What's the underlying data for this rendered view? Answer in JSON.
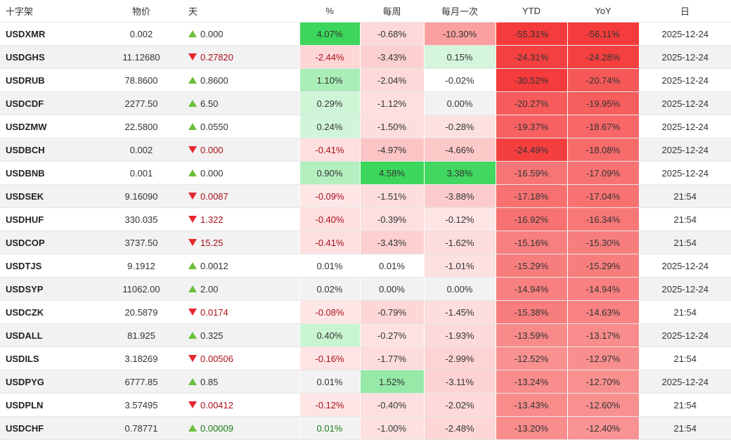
{
  "headers": {
    "symbol": "十字架",
    "price": "物价",
    "day": "天",
    "pct": "%",
    "weekly": "每周",
    "monthly": "每月一次",
    "ytd": "YTD",
    "yoy": "YoY",
    "date": "日"
  },
  "colors": {
    "up_triangle": "#6cbf3c",
    "down_triangle": "#e5262c",
    "positive_strong": "#3cd65c",
    "negative_strong": "#f53b3b"
  },
  "rows": [
    {
      "symbol": "USDXMR",
      "price": "0.002",
      "dir": "up",
      "day": "0.000",
      "pct": "4.07%",
      "weekly": "-0.68%",
      "monthly": "-10.30%",
      "ytd": "-55.31%",
      "yoy": "-56.11%",
      "date": "2025-12-24"
    },
    {
      "symbol": "USDGHS",
      "price": "11.12680",
      "dir": "down",
      "day": "0.27820",
      "pct": "-2.44%",
      "weekly": "-3.43%",
      "monthly": "0.15%",
      "ytd": "-24.31%",
      "yoy": "-24.28%",
      "date": "2025-12-24"
    },
    {
      "symbol": "USDRUB",
      "price": "78.8600",
      "dir": "up",
      "day": "0.8600",
      "pct": "1.10%",
      "weekly": "-2.04%",
      "monthly": "-0.02%",
      "ytd": "-30.52%",
      "yoy": "-20.74%",
      "date": "2025-12-24"
    },
    {
      "symbol": "USDCDF",
      "price": "2277.50",
      "dir": "up",
      "day": "6.50",
      "pct": "0.29%",
      "weekly": "-1.12%",
      "monthly": "0.00%",
      "ytd": "-20.27%",
      "yoy": "-19.95%",
      "date": "2025-12-24"
    },
    {
      "symbol": "USDZMW",
      "price": "22.5800",
      "dir": "up",
      "day": "0.0550",
      "pct": "0.24%",
      "weekly": "-1.50%",
      "monthly": "-0.28%",
      "ytd": "-19.37%",
      "yoy": "-18.67%",
      "date": "2025-12-24"
    },
    {
      "symbol": "USDBCH",
      "price": "0.002",
      "dir": "down",
      "day": "0.000",
      "pct": "-0.41%",
      "weekly": "-4.97%",
      "monthly": "-4.66%",
      "ytd": "-24.49%",
      "yoy": "-18.08%",
      "date": "2025-12-24"
    },
    {
      "symbol": "USDBNB",
      "price": "0.001",
      "dir": "up",
      "day": "0.000",
      "pct": "0.90%",
      "weekly": "4.58%",
      "monthly": "3.38%",
      "ytd": "-16.59%",
      "yoy": "-17.09%",
      "date": "2025-12-24"
    },
    {
      "symbol": "USDSEK",
      "price": "9.16090",
      "dir": "down",
      "day": "0.0087",
      "pct": "-0.09%",
      "weekly": "-1.51%",
      "monthly": "-3.88%",
      "ytd": "-17.18%",
      "yoy": "-17.04%",
      "date": "21:54"
    },
    {
      "symbol": "USDHUF",
      "price": "330.035",
      "dir": "down",
      "day": "1.322",
      "pct": "-0.40%",
      "weekly": "-0.39%",
      "monthly": "-0.12%",
      "ytd": "-16.92%",
      "yoy": "-16.34%",
      "date": "21:54"
    },
    {
      "symbol": "USDCOP",
      "price": "3737.50",
      "dir": "down",
      "day": "15.25",
      "pct": "-0.41%",
      "weekly": "-3.43%",
      "monthly": "-1.62%",
      "ytd": "-15.16%",
      "yoy": "-15.30%",
      "date": "21:54"
    },
    {
      "symbol": "USDTJS",
      "price": "9.1912",
      "dir": "up",
      "day": "0.0012",
      "pct": "0.01%",
      "weekly": "0.01%",
      "monthly": "-1.01%",
      "ytd": "-15.29%",
      "yoy": "-15.29%",
      "date": "2025-12-24"
    },
    {
      "symbol": "USDSYP",
      "price": "11062.00",
      "dir": "up",
      "day": "2.00",
      "pct": "0.02%",
      "weekly": "0.00%",
      "monthly": "0.00%",
      "ytd": "-14.94%",
      "yoy": "-14.94%",
      "date": "2025-12-24"
    },
    {
      "symbol": "USDCZK",
      "price": "20.5879",
      "dir": "down",
      "day": "0.0174",
      "pct": "-0.08%",
      "weekly": "-0.79%",
      "monthly": "-1.45%",
      "ytd": "-15.38%",
      "yoy": "-14.63%",
      "date": "21:54"
    },
    {
      "symbol": "USDALL",
      "price": "81.925",
      "dir": "up",
      "day": "0.325",
      "pct": "0.40%",
      "weekly": "-0.27%",
      "monthly": "-1.93%",
      "ytd": "-13.59%",
      "yoy": "-13.17%",
      "date": "2025-12-24"
    },
    {
      "symbol": "USDILS",
      "price": "3.18269",
      "dir": "down",
      "day": "0.00506",
      "pct": "-0.16%",
      "weekly": "-1.77%",
      "monthly": "-2.99%",
      "ytd": "-12.52%",
      "yoy": "-12.97%",
      "date": "21:54"
    },
    {
      "symbol": "USDPYG",
      "price": "6777.85",
      "dir": "up",
      "day": "0.85",
      "pct": "0.01%",
      "weekly": "1.52%",
      "monthly": "-3.11%",
      "ytd": "-13.24%",
      "yoy": "-12.70%",
      "date": "2025-12-24"
    },
    {
      "symbol": "USDPLN",
      "price": "3.57495",
      "dir": "down",
      "day": "0.00412",
      "pct": "-0.12%",
      "weekly": "-0.40%",
      "monthly": "-2.02%",
      "ytd": "-13.43%",
      "yoy": "-12.60%",
      "date": "21:54"
    },
    {
      "symbol": "USDCHF",
      "price": "0.78771",
      "dir": "up",
      "day": "0.00009",
      "pct": "0.01%",
      "weekly": "-1.00%",
      "monthly": "-2.48%",
      "ytd": "-13.20%",
      "yoy": "-12.40%",
      "date": "21:54"
    }
  ]
}
